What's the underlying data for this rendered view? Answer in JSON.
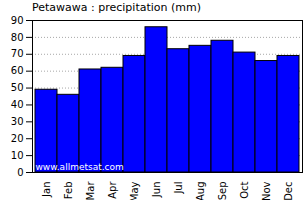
{
  "chart_data": {
    "type": "bar",
    "title": "Petawawa : precipitation (mm)",
    "categories": [
      "Jan",
      "Feb",
      "Mar",
      "Apr",
      "May",
      "Jun",
      "Jul",
      "Aug",
      "Sep",
      "Oct",
      "Nov",
      "Dec"
    ],
    "values": [
      49,
      46,
      61,
      62,
      69,
      86,
      73,
      75,
      78,
      71,
      66,
      69
    ],
    "color": "#0000ff",
    "ylim": [
      0,
      90
    ],
    "yticks": [
      0,
      10,
      20,
      30,
      40,
      50,
      60,
      70,
      80,
      90
    ],
    "grid": true,
    "annotations": [
      "www.allmetsat.com"
    ]
  }
}
